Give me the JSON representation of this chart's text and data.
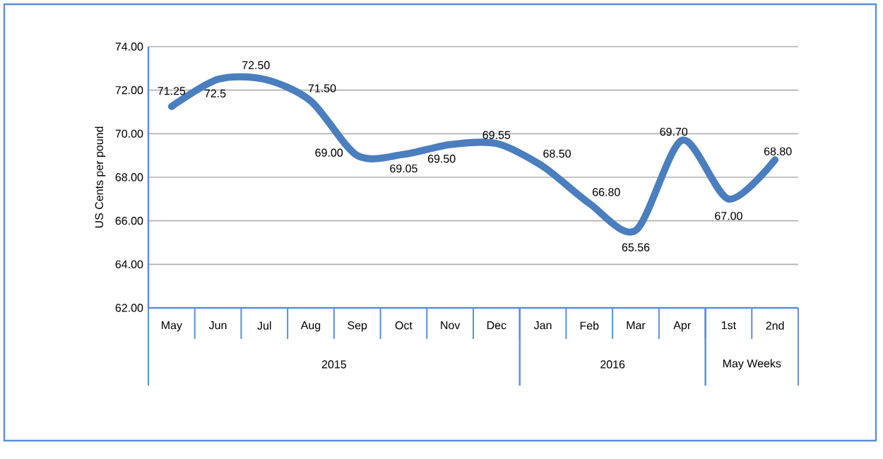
{
  "chart_data": {
    "type": "line",
    "ylabel": "US Cents per pound",
    "categories": [
      "May",
      "Jun",
      "Jul",
      "Aug",
      "Sep",
      "Oct",
      "Nov",
      "Dec",
      "Jan",
      "Feb",
      "Mar",
      "Apr",
      "1st",
      "2nd"
    ],
    "values": [
      71.25,
      72.5,
      72.5,
      71.5,
      69,
      69.05,
      69.5,
      69.55,
      68.5,
      66.8,
      65.56,
      69.7,
      67,
      68.8
    ],
    "value_labels": [
      "71.25",
      "72.5",
      "72.50",
      "71.50",
      "69.00",
      "69.05",
      "69.50",
      "69.55",
      "68.50",
      "66.80",
      "65.56",
      "69.70",
      "67.00",
      "68.80"
    ],
    "color": "#4a7ebf",
    "ylim": [
      62,
      74
    ],
    "yticks": [
      {
        "value": 62,
        "label": "62.00"
      },
      {
        "value": 64,
        "label": "64.00"
      },
      {
        "value": 66,
        "label": "66.00"
      },
      {
        "value": 68,
        "label": "68.00"
      },
      {
        "value": 70,
        "label": "70.00"
      },
      {
        "value": 72,
        "label": "72.00"
      },
      {
        "value": 74,
        "label": "74.00"
      }
    ],
    "grid": "y",
    "marker": "none",
    "line_style": "solid",
    "annotations": [
      "2015",
      "2016",
      "May Weeks"
    ]
  }
}
